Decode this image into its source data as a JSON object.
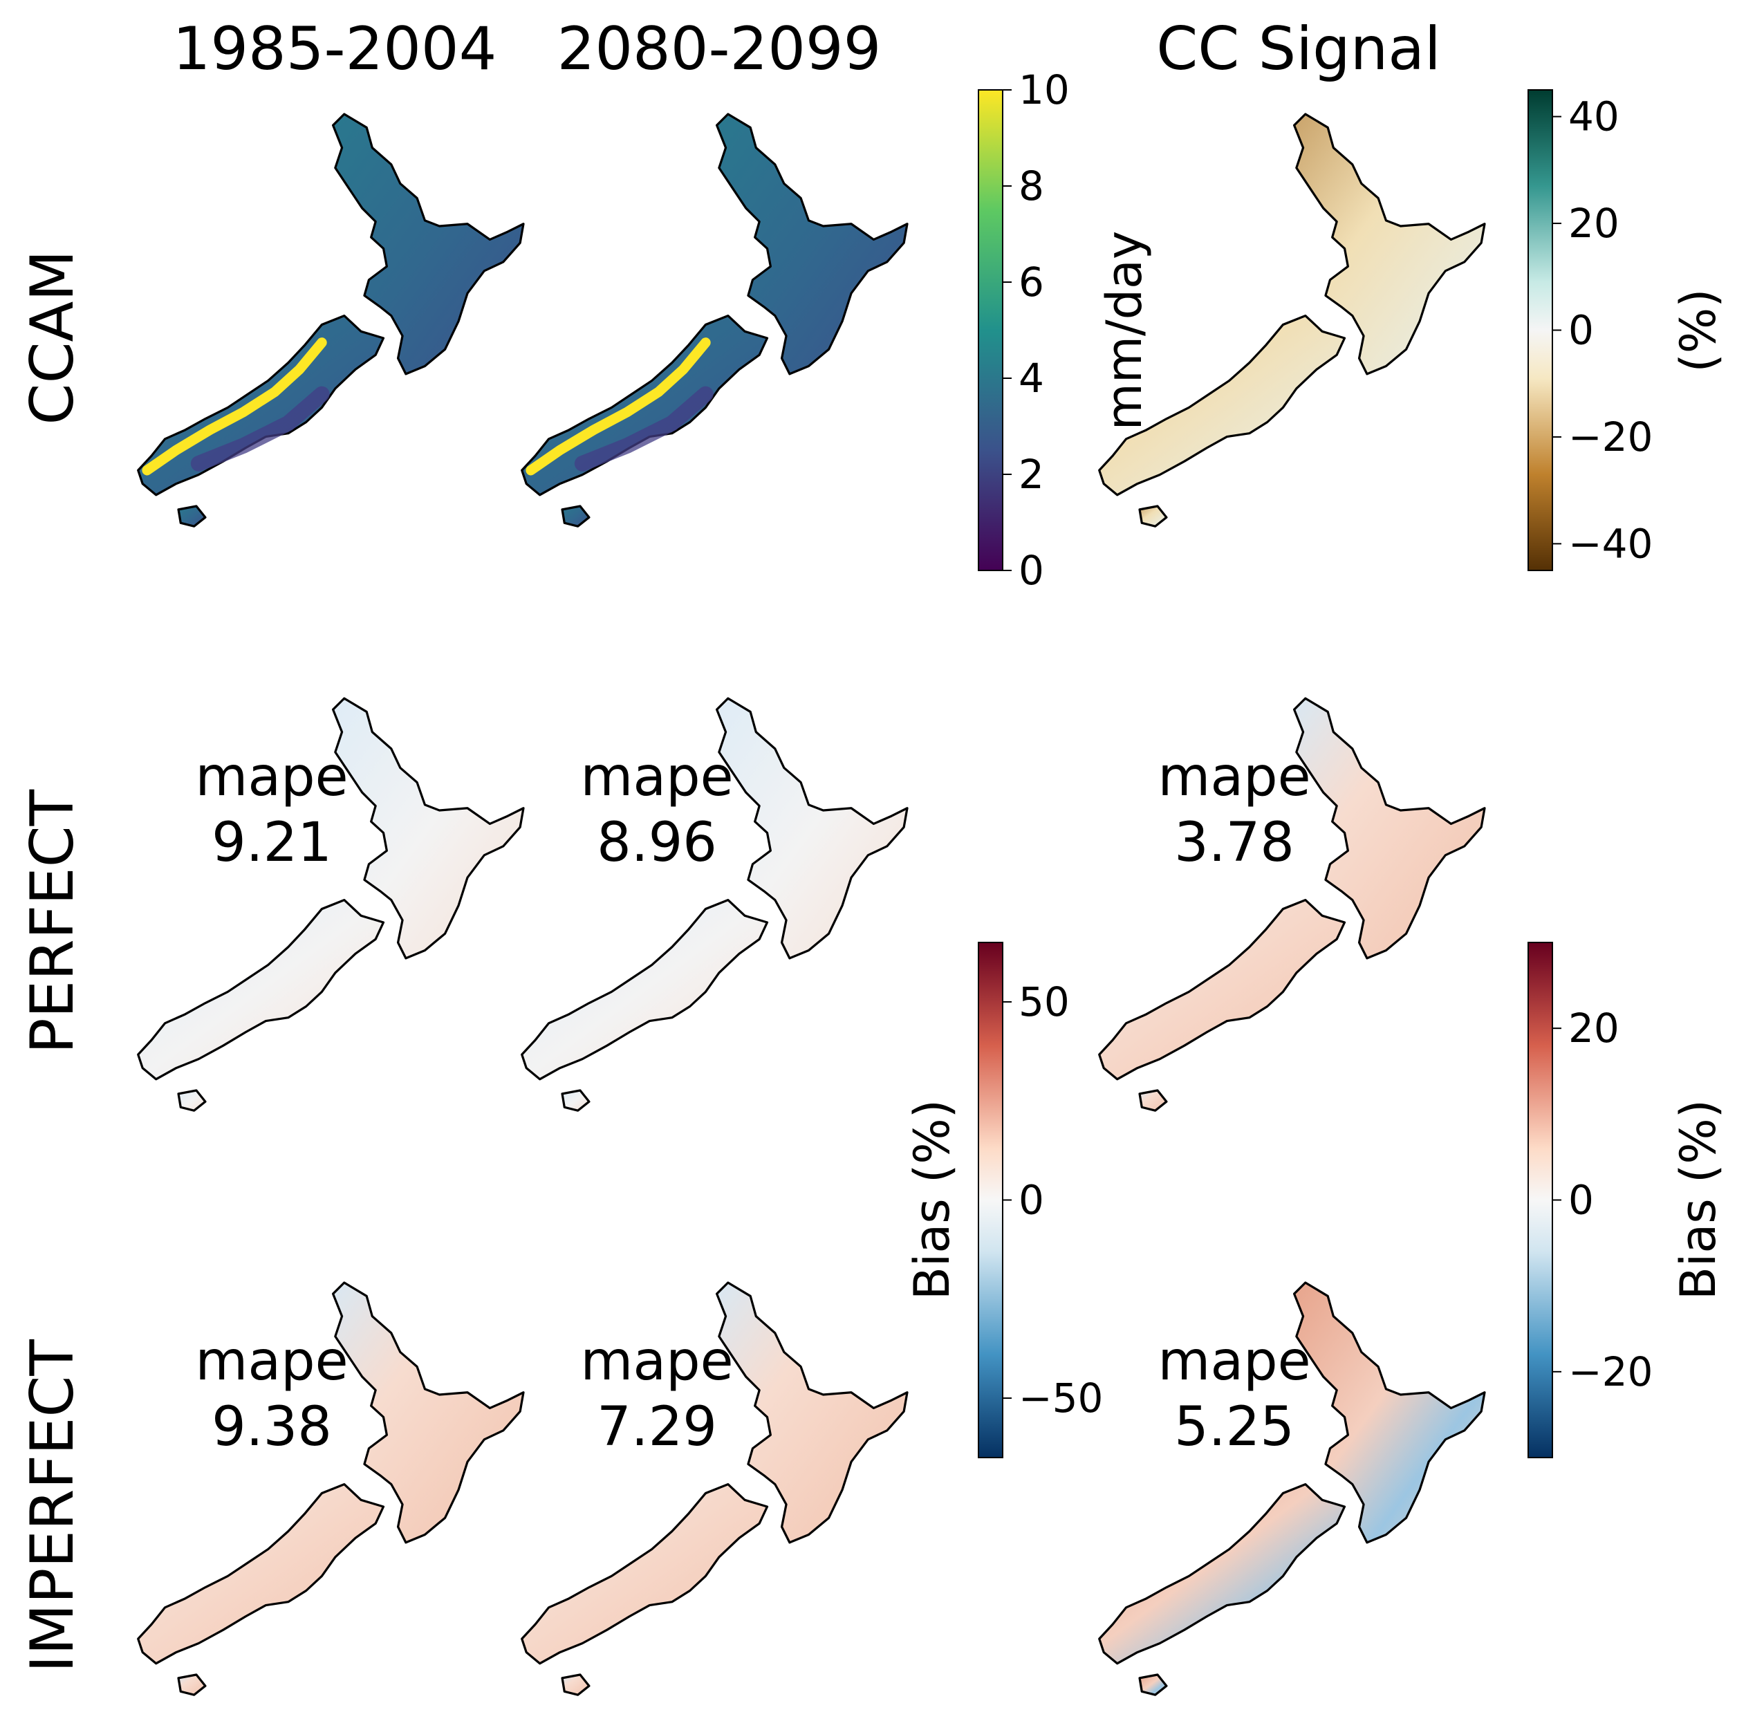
{
  "columns": [
    "1985-2004",
    "2080-2099",
    "CC Signal"
  ],
  "rows": [
    "CCAM",
    "PERFECT",
    "IMPERFECT"
  ],
  "colorbars": {
    "precip": {
      "label": "mm/day",
      "min": 0,
      "max": 10,
      "ticks": [
        "0",
        "2",
        "4",
        "6",
        "8",
        "10"
      ],
      "colormap": "viridis"
    },
    "cc_signal": {
      "label": "(%)",
      "min": -45,
      "max": 45,
      "ticks": [
        "−40",
        "−20",
        "0",
        "20",
        "40"
      ],
      "tick_values": [
        -40,
        -20,
        0,
        20,
        40
      ],
      "colormap": "BrBG"
    },
    "bias_left": {
      "label": "Bias (%)",
      "min": -65,
      "max": 65,
      "ticks": [
        "−50",
        "0",
        "50"
      ],
      "tick_values": [
        -50,
        0,
        50
      ],
      "colormap": "RdBu_r"
    },
    "bias_right": {
      "label": "Bias (%)",
      "min": -30,
      "max": 30,
      "ticks": [
        "−20",
        "0",
        "20"
      ],
      "tick_values": [
        -20,
        0,
        20
      ],
      "colormap": "RdBu_r"
    }
  },
  "annotations": {
    "perfect": [
      {
        "label": "mape",
        "value": "9.21"
      },
      {
        "label": "mape",
        "value": "8.96"
      },
      {
        "label": "mape",
        "value": "3.78"
      }
    ],
    "imperfect": [
      {
        "label": "mape",
        "value": "9.38"
      },
      {
        "label": "mape",
        "value": "7.29"
      },
      {
        "label": "mape",
        "value": "5.25"
      }
    ]
  },
  "chart_data": {
    "type": "heatmap",
    "layout": "3x3 map grid of New Zealand",
    "panels": [
      {
        "row": "CCAM",
        "column": "1985-2004",
        "variable": "precipitation",
        "colorbar": "precip"
      },
      {
        "row": "CCAM",
        "column": "2080-2099",
        "variable": "precipitation",
        "colorbar": "precip"
      },
      {
        "row": "CCAM",
        "column": "CC Signal",
        "variable": "climate change signal",
        "colorbar": "cc_signal"
      },
      {
        "row": "PERFECT",
        "column": "1985-2004",
        "variable": "bias",
        "colorbar": "bias_left",
        "mape": 9.21
      },
      {
        "row": "PERFECT",
        "column": "2080-2099",
        "variable": "bias",
        "colorbar": "bias_left",
        "mape": 8.96
      },
      {
        "row": "PERFECT",
        "column": "CC Signal",
        "variable": "bias",
        "colorbar": "bias_right",
        "mape": 3.78
      },
      {
        "row": "IMPERFECT",
        "column": "1985-2004",
        "variable": "bias",
        "colorbar": "bias_left",
        "mape": 9.38
      },
      {
        "row": "IMPERFECT",
        "column": "2080-2099",
        "variable": "bias",
        "colorbar": "bias_left",
        "mape": 7.29
      },
      {
        "row": "IMPERFECT",
        "column": "CC Signal",
        "variable": "bias",
        "colorbar": "bias_right",
        "mape": 5.25
      }
    ]
  }
}
